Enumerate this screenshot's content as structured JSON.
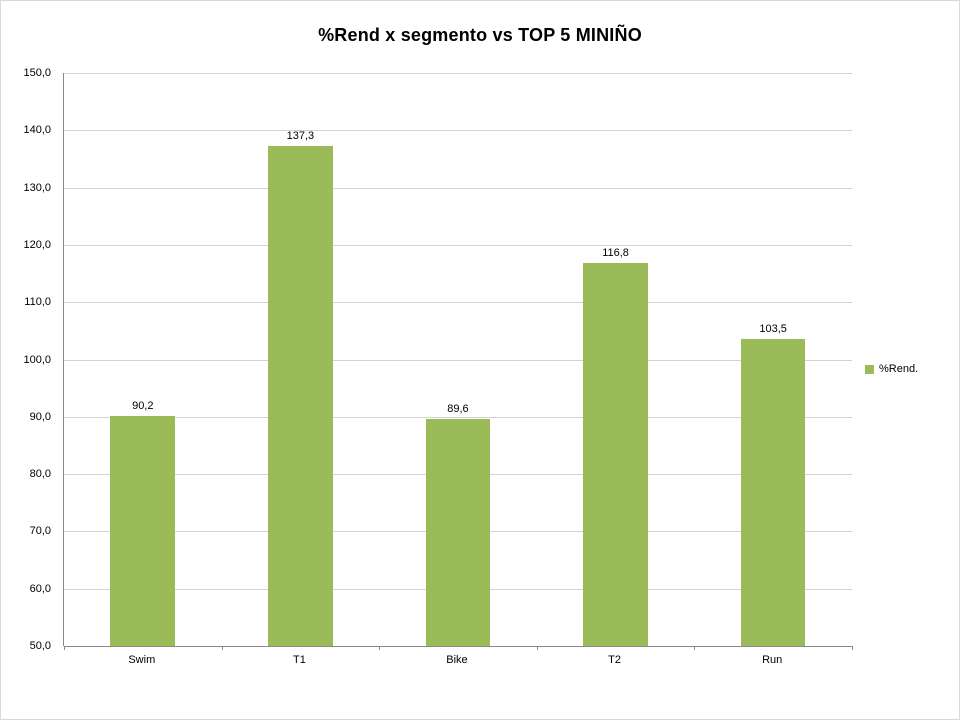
{
  "chart_data": {
    "type": "bar",
    "title": "%Rend x segmento vs TOP 5 MINIÑO",
    "categories": [
      "Swim",
      "T1",
      "Bike",
      "T2",
      "Run"
    ],
    "values": [
      90.2,
      137.3,
      89.6,
      116.8,
      103.5
    ],
    "value_labels": [
      "90,2",
      "137,3",
      "89,6",
      "116,8",
      "103,5"
    ],
    "series_name": "%Rend.",
    "ylim": [
      50,
      150
    ],
    "ytick_step": 10,
    "ytick_labels": [
      "150,0",
      "140,0",
      "130,0",
      "120,0",
      "110,0",
      "100,0",
      "90,0",
      "80,0",
      "70,0",
      "60,0",
      "50,0"
    ],
    "xlabel": "",
    "ylabel": "",
    "grid": true,
    "legend_position": "right",
    "legend": [
      {
        "label": "%Rend.",
        "color": "#9bbb59"
      }
    ],
    "bar_color": "#9bbb59",
    "gridline_color": "#d3d3d3",
    "axis_line_color": "#898989",
    "background_color": "#ffffff"
  }
}
